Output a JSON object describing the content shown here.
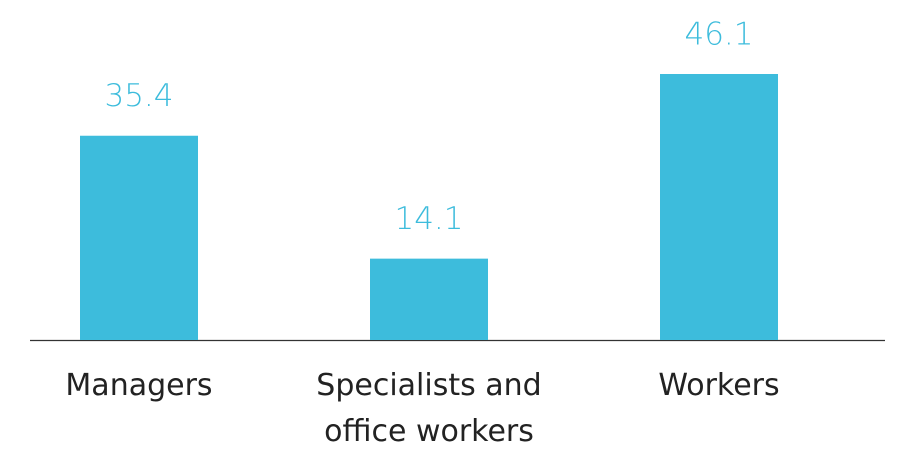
{
  "chart_data": {
    "type": "bar",
    "categories": [
      "Managers",
      "Specialists and office workers",
      "Workers"
    ],
    "values": [
      35.4,
      14.1,
      46.1
    ],
    "color": "#3dbcdc"
  }
}
